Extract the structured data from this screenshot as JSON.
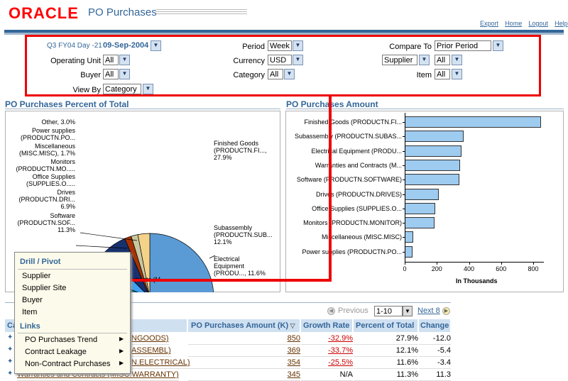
{
  "header": {
    "logo": "ORACLE",
    "title": "PO Purchases"
  },
  "global_links": [
    "Export",
    "Home",
    "Logout",
    "Help"
  ],
  "params": {
    "date_prefix": "Q3 FY04 Day -21",
    "date_value": "09-Sep-2004",
    "period_label": "Period",
    "period_value": "Week",
    "compare_label": "Compare To",
    "compare_value": "Prior Period",
    "ou_label": "Operating Unit",
    "ou_value": "All",
    "currency_label": "Currency",
    "currency_value": "USD",
    "dim_value": "Supplier",
    "dim_sel_value": "All",
    "buyer_label": "Buyer",
    "buyer_value": "All",
    "category_label": "Category",
    "category_value": "All",
    "item_label": "Item",
    "item_value": "All",
    "viewby_label": "View By",
    "viewby_value": "Category"
  },
  "pie": {
    "title": "PO Purchases Percent of Total",
    "labels": {
      "finished": [
        "Finished Goods",
        "(PRODUCTN.FI...,",
        "27.9%"
      ],
      "subassembly": [
        "Subassembly",
        "(PRODUCTN.SUB...",
        "12.1%"
      ],
      "electrical": [
        "Electrical",
        "Equipment",
        "(PRODU..., 11.6%"
      ],
      "software": [
        "Software",
        "(PRODUCTN.SOF...",
        "11.3%"
      ],
      "drives": [
        "Drives",
        "(PRODUCTN.DRI...",
        "6.9%"
      ],
      "office": [
        "Office Supplies",
        "(SUPPLIES.O....."
      ],
      "monitors": [
        "Monitors",
        "(PRODUCTN.MO....."
      ],
      "misc": [
        "Miscellaneous",
        "(MISC.MISC), 1.7%"
      ],
      "power": [
        "Power supplies",
        "(PRODUCTN.PO..."
      ],
      "other": [
        "Other, 3.0%"
      ],
      "warranties_partial": "ntracts (M..."
    }
  },
  "chart_data": [
    {
      "type": "pie",
      "title": "PO Purchases Percent of Total",
      "categories": [
        "Finished Goods",
        "Subassembly",
        "Electrical Equipment",
        "Warranties and Contracts",
        "Software",
        "Drives",
        "Office Supplies",
        "Monitors",
        "Miscellaneous",
        "Power supplies",
        "Other"
      ],
      "values": [
        27.9,
        12.1,
        11.6,
        11.3,
        11.3,
        6.9,
        6.2,
        6.1,
        1.7,
        1.7,
        3.0
      ],
      "colors": [
        "#5b9bd5",
        "#2d5f9e",
        "#a8a81a",
        "#6c6aa6",
        "#d4a03c",
        "#0b6b6b",
        "#3da0f0",
        "#17306e",
        "#a83200",
        "#c8c8a0",
        "#f5d28a"
      ]
    },
    {
      "type": "bar",
      "orientation": "horizontal",
      "title": "PO Purchases Amount",
      "categories": [
        "Finished Goods (PRODUCTN.FI...",
        "Subassembly (PRODUCTN.SUBAS...",
        "Electrical Equipment (PRODU...",
        "Warranties and Contracts (M...",
        "Software (PRODUCTN.SOFTWARE)",
        "Drives (PRODUCTN.DRIVES)",
        "Office Supplies (SUPPLIES.O...",
        "Monitors (PRODUCTN.MONITOR)",
        "Miscellaneous (MISC.MISC)",
        "Power supplies (PRODUCTN.PO..."
      ],
      "values": [
        850,
        369,
        354,
        345,
        340,
        211,
        190,
        186,
        52,
        50
      ],
      "xlim": [
        0,
        900
      ],
      "xticks": [
        0,
        200,
        400,
        600,
        800
      ],
      "xlabel": "In Thousands"
    }
  ],
  "menu": {
    "drill_header": "Drill / Pivot",
    "drill_items": [
      "Supplier",
      "Supplier Site",
      "Buyer",
      "Item"
    ],
    "links_header": "Links",
    "link_items": [
      "PO Purchases Trend",
      "Contract Leakage",
      "Non-Contract Purchases"
    ]
  },
  "table": {
    "previous": "Previous",
    "range": "1-10",
    "next": "Next 8",
    "col_partial": "Ca",
    "cols": [
      "PO Purchases Amount (K)",
      "Growth Rate",
      "Percent of Total",
      "Change"
    ],
    "rows": [
      {
        "cat": "NGOODS)",
        "amt": "850",
        "growth": "-32.9%",
        "pct": "27.9%",
        "chg": "-12.0"
      },
      {
        "cat": "ASSEMBL)",
        "amt": "369",
        "growth": "-33.7%",
        "pct": "12.1%",
        "chg": "-5.4"
      },
      {
        "cat": "N.ELECTRICAL)",
        "amt": "354",
        "growth": "-25.5%",
        "pct": "11.6%",
        "chg": "-3.4"
      },
      {
        "cat": "Warranties and Contracts (MISC.WARRANTY)",
        "amt": "345",
        "growth": "N/A",
        "pct": "11.3%",
        "chg": "11.3"
      }
    ]
  }
}
